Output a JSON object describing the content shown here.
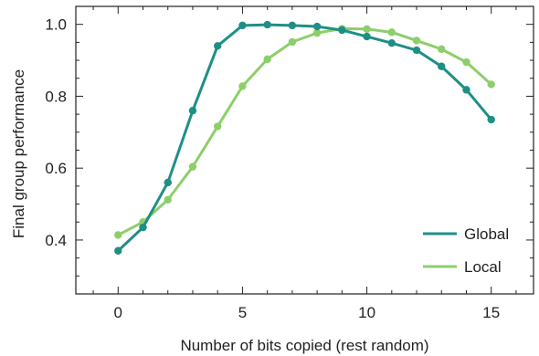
{
  "chart_data": {
    "type": "line",
    "title": "",
    "xlabel": "Number of bits copied (rest random)",
    "ylabel": "Final group performance",
    "xlim": [
      -1.7,
      16.7
    ],
    "ylim": [
      0.25,
      1.05
    ],
    "x_ticks": [
      0,
      5,
      10,
      15
    ],
    "x_tick_labels": [
      "0",
      "5",
      "10",
      "15"
    ],
    "y_ticks": [
      0.4,
      0.6,
      0.8,
      1.0
    ],
    "y_tick_labels": [
      "0.4",
      "0.6",
      "0.8",
      "1.0"
    ],
    "grid": false,
    "legend_position": "lower-right",
    "x": [
      0,
      1,
      2,
      3,
      4,
      5,
      6,
      7,
      8,
      9,
      10,
      11,
      12,
      13,
      14,
      15
    ],
    "series": [
      {
        "name": "Global",
        "color": "#1f8f86",
        "values": [
          0.37,
          0.435,
          0.56,
          0.76,
          0.94,
          0.997,
          0.999,
          0.997,
          0.994,
          0.984,
          0.966,
          0.948,
          0.928,
          0.883,
          0.818,
          0.735
        ]
      },
      {
        "name": "Local",
        "color": "#8ccf6a",
        "values": [
          0.414,
          0.45,
          0.512,
          0.604,
          0.716,
          0.828,
          0.903,
          0.951,
          0.976,
          0.988,
          0.987,
          0.978,
          0.955,
          0.931,
          0.895,
          0.833
        ]
      }
    ]
  }
}
